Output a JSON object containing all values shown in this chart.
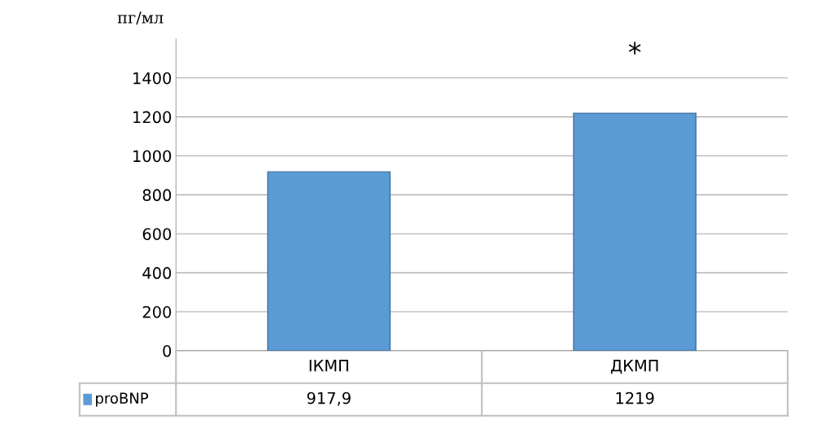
{
  "chart_data": {
    "type": "bar",
    "ylabel": "пг/мл",
    "categories": [
      "ІКМП",
      "ДКМП"
    ],
    "series": [
      {
        "name": "proBNP",
        "color": "#5b9bd5",
        "values": [
          917.9,
          1219
        ],
        "value_labels": [
          "917,9",
          "1219"
        ]
      }
    ],
    "ylim": [
      0,
      1600
    ],
    "yticks": [
      0,
      200,
      400,
      600,
      800,
      1000,
      1200,
      1400
    ],
    "grid": "y",
    "legend": "bottom",
    "annotations": [
      "*"
    ]
  }
}
